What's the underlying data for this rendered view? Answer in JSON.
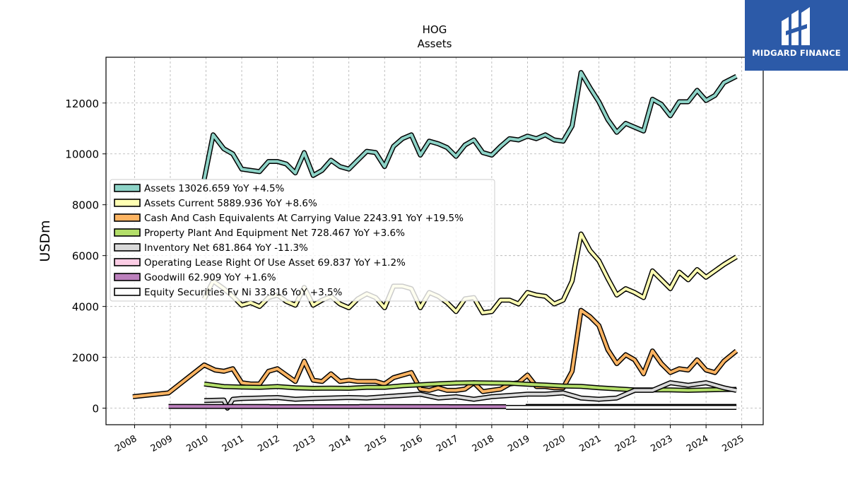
{
  "brand": {
    "name": "MIDGARD FINANCE",
    "bg_color": "#2c5aa8"
  },
  "chart_data": {
    "type": "line",
    "title": "HOG",
    "subtitle": "Assets",
    "ylabel": "USDm",
    "xlabel": "",
    "xlim": [
      2007.2,
      2025.6
    ],
    "ylim": [
      -650,
      13800
    ],
    "xticks": [
      "2008",
      "2009",
      "2010",
      "2011",
      "2012",
      "2013",
      "2014",
      "2015",
      "2016",
      "2017",
      "2018",
      "2019",
      "2020",
      "2021",
      "2022",
      "2023",
      "2024",
      "2025"
    ],
    "yticks": [
      0,
      2000,
      4000,
      6000,
      8000,
      10000,
      12000
    ],
    "grid": true,
    "legend_position": "center-left",
    "series": [
      {
        "name": "Assets",
        "legend": "Assets  13026.659 YoY +4.5%",
        "color": "#8dd3c7",
        "points": [
          [
            2009.95,
            9000
          ],
          [
            2010.2,
            10750
          ],
          [
            2010.5,
            10200
          ],
          [
            2010.75,
            10000
          ],
          [
            2011.0,
            9400
          ],
          [
            2011.25,
            9350
          ],
          [
            2011.5,
            9300
          ],
          [
            2011.75,
            9700
          ],
          [
            2012.0,
            9700
          ],
          [
            2012.25,
            9600
          ],
          [
            2012.5,
            9250
          ],
          [
            2012.75,
            10050
          ],
          [
            2013.0,
            9150
          ],
          [
            2013.25,
            9350
          ],
          [
            2013.5,
            9750
          ],
          [
            2013.75,
            9500
          ],
          [
            2014.0,
            9400
          ],
          [
            2014.25,
            9750
          ],
          [
            2014.5,
            10100
          ],
          [
            2014.75,
            10050
          ],
          [
            2015.0,
            9500
          ],
          [
            2015.25,
            10300
          ],
          [
            2015.5,
            10600
          ],
          [
            2015.75,
            10750
          ],
          [
            2016.0,
            9950
          ],
          [
            2016.25,
            10500
          ],
          [
            2016.5,
            10400
          ],
          [
            2016.75,
            10250
          ],
          [
            2017.0,
            9900
          ],
          [
            2017.25,
            10350
          ],
          [
            2017.5,
            10550
          ],
          [
            2017.75,
            10050
          ],
          [
            2018.0,
            9950
          ],
          [
            2018.25,
            10300
          ],
          [
            2018.5,
            10600
          ],
          [
            2018.75,
            10550
          ],
          [
            2019.0,
            10700
          ],
          [
            2019.25,
            10600
          ],
          [
            2019.5,
            10750
          ],
          [
            2019.75,
            10550
          ],
          [
            2020.0,
            10500
          ],
          [
            2020.25,
            11100
          ],
          [
            2020.5,
            13200
          ],
          [
            2020.75,
            12600
          ],
          [
            2021.0,
            12050
          ],
          [
            2021.25,
            11350
          ],
          [
            2021.5,
            10850
          ],
          [
            2021.75,
            11200
          ],
          [
            2022.0,
            11050
          ],
          [
            2022.25,
            10900
          ],
          [
            2022.5,
            12150
          ],
          [
            2022.75,
            11950
          ],
          [
            2023.0,
            11500
          ],
          [
            2023.25,
            12050
          ],
          [
            2023.5,
            12050
          ],
          [
            2023.75,
            12500
          ],
          [
            2024.0,
            12100
          ],
          [
            2024.25,
            12300
          ],
          [
            2024.5,
            12800
          ],
          [
            2024.85,
            13050
          ]
        ]
      },
      {
        "name": "Assets Current",
        "legend": "Assets Current  5889.936 YoY +8.6%",
        "color": "#ffffb3",
        "points": [
          [
            2009.95,
            4300
          ],
          [
            2010.2,
            5000
          ],
          [
            2010.5,
            4700
          ],
          [
            2010.75,
            4400
          ],
          [
            2011.0,
            4050
          ],
          [
            2011.25,
            4150
          ],
          [
            2011.5,
            4000
          ],
          [
            2011.75,
            4350
          ],
          [
            2012.0,
            4450
          ],
          [
            2012.25,
            4200
          ],
          [
            2012.5,
            4050
          ],
          [
            2012.75,
            4750
          ],
          [
            2013.0,
            4050
          ],
          [
            2013.25,
            4250
          ],
          [
            2013.5,
            4400
          ],
          [
            2013.75,
            4100
          ],
          [
            2014.0,
            3950
          ],
          [
            2014.25,
            4300
          ],
          [
            2014.5,
            4500
          ],
          [
            2014.75,
            4350
          ],
          [
            2015.0,
            3950
          ],
          [
            2015.25,
            4800
          ],
          [
            2015.5,
            4800
          ],
          [
            2015.75,
            4700
          ],
          [
            2016.0,
            3950
          ],
          [
            2016.25,
            4550
          ],
          [
            2016.5,
            4400
          ],
          [
            2016.75,
            4150
          ],
          [
            2017.0,
            3800
          ],
          [
            2017.25,
            4300
          ],
          [
            2017.5,
            4350
          ],
          [
            2017.75,
            3750
          ],
          [
            2018.0,
            3800
          ],
          [
            2018.25,
            4250
          ],
          [
            2018.5,
            4250
          ],
          [
            2018.75,
            4100
          ],
          [
            2019.0,
            4550
          ],
          [
            2019.25,
            4450
          ],
          [
            2019.5,
            4400
          ],
          [
            2019.75,
            4100
          ],
          [
            2020.0,
            4250
          ],
          [
            2020.25,
            5000
          ],
          [
            2020.5,
            6850
          ],
          [
            2020.75,
            6200
          ],
          [
            2021.0,
            5800
          ],
          [
            2021.25,
            5100
          ],
          [
            2021.5,
            4450
          ],
          [
            2021.75,
            4700
          ],
          [
            2022.0,
            4550
          ],
          [
            2022.25,
            4350
          ],
          [
            2022.5,
            5400
          ],
          [
            2022.75,
            5050
          ],
          [
            2023.0,
            4700
          ],
          [
            2023.25,
            5350
          ],
          [
            2023.5,
            5050
          ],
          [
            2023.75,
            5450
          ],
          [
            2024.0,
            5150
          ],
          [
            2024.25,
            5400
          ],
          [
            2024.5,
            5650
          ],
          [
            2024.85,
            5950
          ]
        ]
      },
      {
        "name": "Cash And Cash Equivalents At Carrying Value",
        "legend": "Cash And Cash Equivalents At Carrying Value  2243.91 YoY +19.5%",
        "color": "#fdb462",
        "points": [
          [
            2007.95,
            450
          ],
          [
            2008.95,
            600
          ],
          [
            2009.95,
            1700
          ],
          [
            2010.25,
            1500
          ],
          [
            2010.5,
            1450
          ],
          [
            2010.75,
            1550
          ],
          [
            2011.0,
            1000
          ],
          [
            2011.25,
            950
          ],
          [
            2011.5,
            950
          ],
          [
            2011.75,
            1450
          ],
          [
            2012.0,
            1550
          ],
          [
            2012.25,
            1300
          ],
          [
            2012.5,
            1050
          ],
          [
            2012.75,
            1850
          ],
          [
            2013.0,
            1100
          ],
          [
            2013.25,
            1050
          ],
          [
            2013.5,
            1350
          ],
          [
            2013.75,
            1050
          ],
          [
            2014.0,
            1100
          ],
          [
            2014.25,
            1050
          ],
          [
            2014.5,
            1050
          ],
          [
            2014.75,
            1050
          ],
          [
            2015.0,
            950
          ],
          [
            2015.25,
            1200
          ],
          [
            2015.5,
            1300
          ],
          [
            2015.75,
            1400
          ],
          [
            2016.0,
            750
          ],
          [
            2016.25,
            700
          ],
          [
            2016.5,
            800
          ],
          [
            2016.75,
            700
          ],
          [
            2017.0,
            700
          ],
          [
            2017.25,
            750
          ],
          [
            2017.5,
            1000
          ],
          [
            2017.75,
            650
          ],
          [
            2018.0,
            700
          ],
          [
            2018.25,
            750
          ],
          [
            2018.5,
            950
          ],
          [
            2018.75,
            1000
          ],
          [
            2019.0,
            1300
          ],
          [
            2019.25,
            850
          ],
          [
            2019.5,
            850
          ],
          [
            2019.75,
            800
          ],
          [
            2020.0,
            800
          ],
          [
            2020.25,
            1450
          ],
          [
            2020.5,
            3850
          ],
          [
            2020.75,
            3600
          ],
          [
            2021.0,
            3250
          ],
          [
            2021.25,
            2300
          ],
          [
            2021.5,
            1750
          ],
          [
            2021.75,
            2100
          ],
          [
            2022.0,
            1900
          ],
          [
            2022.25,
            1350
          ],
          [
            2022.5,
            2250
          ],
          [
            2022.75,
            1750
          ],
          [
            2023.0,
            1400
          ],
          [
            2023.25,
            1550
          ],
          [
            2023.5,
            1500
          ],
          [
            2023.75,
            1900
          ],
          [
            2024.0,
            1500
          ],
          [
            2024.25,
            1400
          ],
          [
            2024.5,
            1850
          ],
          [
            2024.85,
            2250
          ]
        ]
      },
      {
        "name": "Property Plant And Equipment Net",
        "legend": "Property Plant And Equipment Net  728.467 YoY +3.6%",
        "color": "#b3de69",
        "points": [
          [
            2009.95,
            950
          ],
          [
            2010.5,
            850
          ],
          [
            2011.0,
            830
          ],
          [
            2011.5,
            820
          ],
          [
            2012.0,
            850
          ],
          [
            2012.5,
            800
          ],
          [
            2013.0,
            780
          ],
          [
            2013.5,
            790
          ],
          [
            2014.0,
            780
          ],
          [
            2014.5,
            820
          ],
          [
            2015.0,
            820
          ],
          [
            2015.5,
            880
          ],
          [
            2016.0,
            920
          ],
          [
            2016.5,
            960
          ],
          [
            2017.0,
            990
          ],
          [
            2017.5,
            1000
          ],
          [
            2018.0,
            990
          ],
          [
            2018.5,
            980
          ],
          [
            2019.0,
            940
          ],
          [
            2019.5,
            910
          ],
          [
            2020.0,
            870
          ],
          [
            2020.5,
            860
          ],
          [
            2021.0,
            800
          ],
          [
            2021.5,
            760
          ],
          [
            2022.0,
            720
          ],
          [
            2022.5,
            720
          ],
          [
            2023.0,
            720
          ],
          [
            2023.5,
            700
          ],
          [
            2024.0,
            720
          ],
          [
            2024.85,
            740
          ]
        ]
      },
      {
        "name": "Inventory Net",
        "legend": "Inventory Net  681.864 YoY -11.3%",
        "color": "#d9d9d9",
        "points": [
          [
            2009.95,
            300
          ],
          [
            2010.5,
            320
          ],
          [
            2010.6,
            0
          ],
          [
            2010.75,
            350
          ],
          [
            2011.0,
            380
          ],
          [
            2011.5,
            400
          ],
          [
            2012.0,
            420
          ],
          [
            2012.5,
            350
          ],
          [
            2013.0,
            380
          ],
          [
            2013.5,
            400
          ],
          [
            2014.0,
            420
          ],
          [
            2014.5,
            400
          ],
          [
            2015.0,
            450
          ],
          [
            2015.5,
            500
          ],
          [
            2016.0,
            550
          ],
          [
            2016.5,
            400
          ],
          [
            2017.0,
            450
          ],
          [
            2017.5,
            350
          ],
          [
            2018.0,
            450
          ],
          [
            2018.5,
            500
          ],
          [
            2019.0,
            550
          ],
          [
            2019.5,
            550
          ],
          [
            2020.0,
            600
          ],
          [
            2020.5,
            400
          ],
          [
            2021.0,
            350
          ],
          [
            2021.5,
            400
          ],
          [
            2022.0,
            700
          ],
          [
            2022.5,
            700
          ],
          [
            2023.0,
            1000
          ],
          [
            2023.5,
            900
          ],
          [
            2024.0,
            1000
          ],
          [
            2024.5,
            800
          ],
          [
            2024.85,
            700
          ]
        ]
      },
      {
        "name": "Operating Lease Right Of Use Asset",
        "legend": "Operating Lease Right Of Use Asset  69.837 YoY +1.2%",
        "color": "#fccde5",
        "points": [
          [
            2018.95,
            70
          ],
          [
            2024.85,
            70
          ]
        ]
      },
      {
        "name": "Goodwill",
        "legend": "Goodwill  62.909 YoY +1.6%",
        "color": "#bc80bd",
        "points": [
          [
            2008.95,
            70
          ],
          [
            2018.4,
            60
          ]
        ]
      },
      {
        "name": "Equity Securities Fv Ni",
        "legend": "Equity Securities Fv Ni  33.816 YoY +3.5%",
        "color": "#ffffff",
        "points": [
          [
            2018.4,
            30
          ],
          [
            2024.85,
            30
          ]
        ]
      }
    ]
  }
}
